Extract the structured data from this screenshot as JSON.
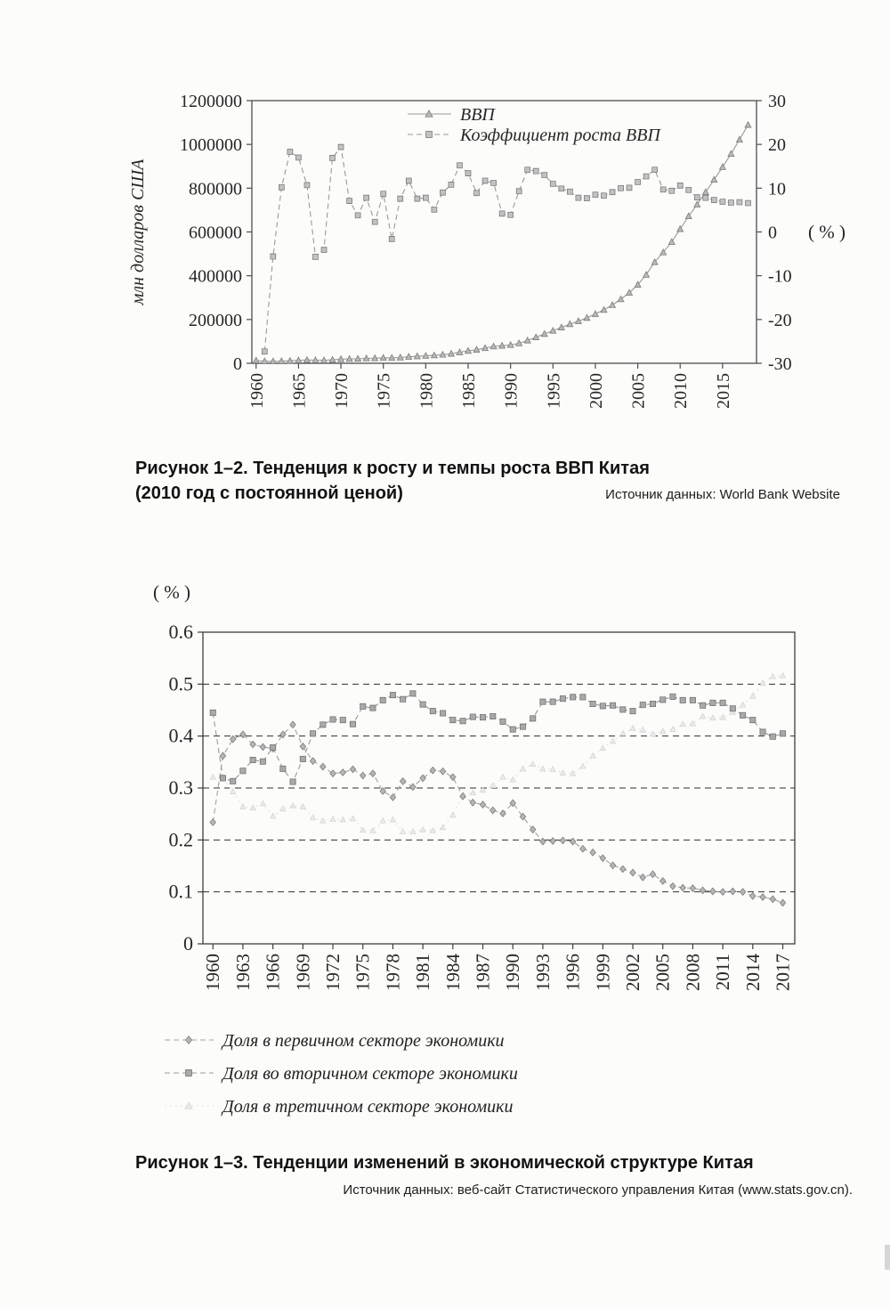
{
  "figure1": {
    "caption_title": "Рисунок 1–2. Тенденция к росту и темпы роста ВВП Китая",
    "caption_subtitle": "(2010 год с постоянной ценой)",
    "source": "Источник данных: World Bank Website"
  },
  "figure2": {
    "caption_title": "Рисунок 1–3. Тенденции изменений в экономической структуре Китая",
    "source": "Источник данных: веб-сайт Статистического управления Китая (www.stats.gov.cn)."
  },
  "chart_data": [
    {
      "type": "line",
      "title": "Тенденция к росту и темпы роста ВВП Китая (2010 год с постоянной ценой)",
      "xlim": [
        1959.5,
        2019
      ],
      "xticks": [
        1960,
        1965,
        1970,
        1975,
        1980,
        1985,
        1990,
        1995,
        2000,
        2005,
        2010,
        2015
      ],
      "left_axis": {
        "label": "млн долларов США",
        "lim": [
          0,
          1200000
        ],
        "ticks": [
          1200000,
          1000000,
          800000,
          600000,
          400000,
          200000,
          0
        ]
      },
      "right_axis": {
        "unit": "( % )",
        "lim": [
          -30,
          30
        ],
        "ticks": [
          30,
          20,
          10,
          0,
          -10,
          -20,
          -30
        ]
      },
      "x": [
        1960,
        1961,
        1962,
        1963,
        1964,
        1965,
        1966,
        1967,
        1968,
        1969,
        1970,
        1971,
        1972,
        1973,
        1974,
        1975,
        1976,
        1977,
        1978,
        1979,
        1980,
        1981,
        1982,
        1983,
        1984,
        1985,
        1986,
        1987,
        1988,
        1989,
        1990,
        1991,
        1992,
        1993,
        1994,
        1995,
        1996,
        1997,
        1998,
        1999,
        2000,
        2001,
        2002,
        2003,
        2004,
        2005,
        2006,
        2007,
        2008,
        2009,
        2010,
        2011,
        2012,
        2013,
        2014,
        2015,
        2016,
        2017,
        2018
      ],
      "series": [
        {
          "name": "ВВП",
          "axis": "left",
          "marker": "triangle",
          "line": "solid",
          "color": "#9a9a9a",
          "fill": "#b9b9b9",
          "edge": "#7c7c7c",
          "values": [
            12900,
            9400,
            8800,
            9700,
            11500,
            13500,
            14900,
            14100,
            13500,
            15800,
            18800,
            20200,
            20900,
            22500,
            23100,
            25100,
            24700,
            26500,
            29600,
            31900,
            34400,
            36200,
            39400,
            43700,
            50300,
            57000,
            62100,
            69400,
            77100,
            80400,
            83500,
            91300,
            104300,
            118800,
            134200,
            148900,
            163700,
            178800,
            192700,
            207500,
            225200,
            243900,
            266100,
            292700,
            322200,
            359000,
            404600,
            462000,
            506800,
            554400,
            613200,
            672000,
            725200,
            781700,
            838800,
            896700,
            956700,
            1021700,
            1089100
          ]
        },
        {
          "name": "Коэффициент роста ВВП",
          "axis": "right",
          "marker": "square",
          "line": "dashed",
          "color": "#9a9a9a",
          "fill": "#c2c2c2",
          "edge": "#7c7c7c",
          "values": [
            null,
            -27.3,
            -5.6,
            10.2,
            18.3,
            17.0,
            10.7,
            -5.7,
            -4.1,
            16.9,
            19.4,
            7.1,
            3.8,
            7.8,
            2.3,
            8.7,
            -1.6,
            7.6,
            11.7,
            7.6,
            7.8,
            5.1,
            9.0,
            10.8,
            15.2,
            13.4,
            8.9,
            11.7,
            11.2,
            4.2,
            3.9,
            9.3,
            14.2,
            13.9,
            13.0,
            11.0,
            9.9,
            9.2,
            7.8,
            7.7,
            8.5,
            8.3,
            9.1,
            10.0,
            10.1,
            11.4,
            12.7,
            14.2,
            9.7,
            9.4,
            10.6,
            9.6,
            7.9,
            7.8,
            7.3,
            6.9,
            6.7,
            6.8,
            6.6
          ]
        }
      ]
    },
    {
      "type": "line",
      "title": "Тенденции изменений в экономической структуре Китая",
      "unit": "( % )",
      "xlim": [
        1959,
        2018.2
      ],
      "ylim": [
        0,
        0.6
      ],
      "yticks": [
        0.6,
        0.5,
        0.4,
        0.3,
        0.2,
        0.1,
        0
      ],
      "gridlines": [
        0.5,
        0.4,
        0.3,
        0.2,
        0.1
      ],
      "xticks": [
        1960,
        1963,
        1966,
        1969,
        1972,
        1975,
        1978,
        1981,
        1984,
        1987,
        1990,
        1993,
        1996,
        1999,
        2002,
        2005,
        2008,
        2011,
        2014,
        2017
      ],
      "x": [
        1960,
        1961,
        1962,
        1963,
        1964,
        1965,
        1966,
        1967,
        1968,
        1969,
        1970,
        1971,
        1972,
        1973,
        1974,
        1975,
        1976,
        1977,
        1978,
        1979,
        1980,
        1981,
        1982,
        1983,
        1984,
        1985,
        1986,
        1987,
        1988,
        1989,
        1990,
        1991,
        1992,
        1993,
        1994,
        1995,
        1996,
        1997,
        1998,
        1999,
        2000,
        2001,
        2002,
        2003,
        2004,
        2005,
        2006,
        2007,
        2008,
        2009,
        2010,
        2011,
        2012,
        2013,
        2014,
        2015,
        2016,
        2017
      ],
      "series": [
        {
          "name": "Доля в первичном секторе экономики",
          "marker": "diamond",
          "line": "dashed",
          "color": "#a2a2a2",
          "fill": "#b6b6b6",
          "edge": "#7d7d7d",
          "values": [
            0.234,
            0.362,
            0.394,
            0.403,
            0.384,
            0.379,
            0.376,
            0.403,
            0.422,
            0.38,
            0.352,
            0.341,
            0.328,
            0.33,
            0.336,
            0.324,
            0.328,
            0.294,
            0.282,
            0.313,
            0.302,
            0.319,
            0.334,
            0.332,
            0.321,
            0.284,
            0.272,
            0.268,
            0.257,
            0.251,
            0.271,
            0.245,
            0.22,
            0.197,
            0.198,
            0.199,
            0.197,
            0.183,
            0.176,
            0.165,
            0.151,
            0.144,
            0.137,
            0.128,
            0.134,
            0.121,
            0.111,
            0.108,
            0.107,
            0.103,
            0.101,
            0.1,
            0.101,
            0.1,
            0.092,
            0.09,
            0.086,
            0.079
          ]
        },
        {
          "name": "Доля во вторичном секторе экономики",
          "marker": "square",
          "line": "dashed",
          "color": "#9a9a9a",
          "fill": "#a9a9a9",
          "edge": "#747474",
          "values": [
            0.445,
            0.319,
            0.313,
            0.333,
            0.354,
            0.351,
            0.378,
            0.337,
            0.312,
            0.356,
            0.405,
            0.422,
            0.432,
            0.431,
            0.423,
            0.457,
            0.454,
            0.469,
            0.479,
            0.471,
            0.482,
            0.461,
            0.448,
            0.444,
            0.431,
            0.429,
            0.437,
            0.436,
            0.438,
            0.428,
            0.413,
            0.418,
            0.434,
            0.466,
            0.466,
            0.472,
            0.475,
            0.475,
            0.462,
            0.458,
            0.459,
            0.451,
            0.448,
            0.46,
            0.462,
            0.47,
            0.476,
            0.469,
            0.469,
            0.459,
            0.464,
            0.464,
            0.453,
            0.44,
            0.431,
            0.408,
            0.399,
            0.405
          ]
        },
        {
          "name": "Доля в третичном секторе экономики",
          "marker": "triangle",
          "line": "dotted",
          "color": "#e2e2e2",
          "fill": "#ebebeb",
          "edge": "#d6d6d6",
          "values": [
            0.321,
            0.319,
            0.293,
            0.264,
            0.262,
            0.27,
            0.246,
            0.26,
            0.266,
            0.264,
            0.243,
            0.237,
            0.24,
            0.239,
            0.241,
            0.219,
            0.218,
            0.237,
            0.239,
            0.216,
            0.216,
            0.22,
            0.218,
            0.224,
            0.248,
            0.287,
            0.291,
            0.296,
            0.305,
            0.321,
            0.316,
            0.337,
            0.346,
            0.337,
            0.336,
            0.329,
            0.328,
            0.342,
            0.362,
            0.377,
            0.39,
            0.405,
            0.415,
            0.412,
            0.404,
            0.409,
            0.413,
            0.423,
            0.424,
            0.438,
            0.435,
            0.436,
            0.446,
            0.46,
            0.477,
            0.502,
            0.515,
            0.516
          ]
        }
      ]
    }
  ]
}
